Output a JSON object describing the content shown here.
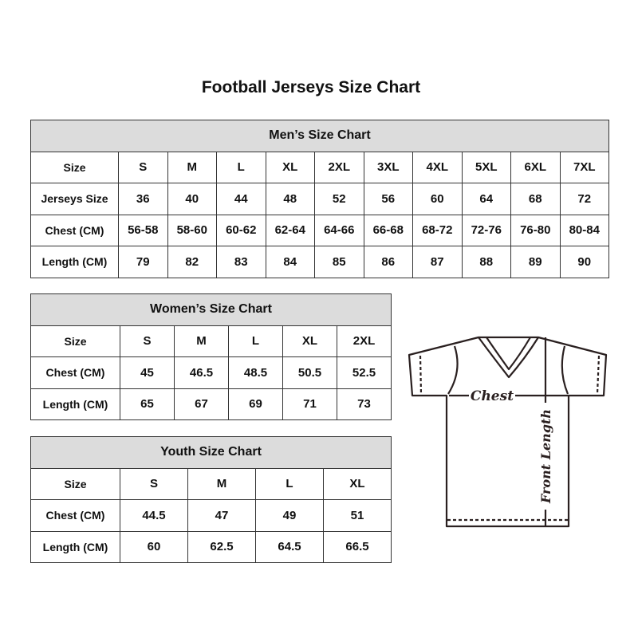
{
  "title": "Football Jerseys Size Chart",
  "men": {
    "title": "Men’s Size Chart",
    "rows": [
      [
        "Size",
        "S",
        "M",
        "L",
        "XL",
        "2XL",
        "3XL",
        "4XL",
        "5XL",
        "6XL",
        "7XL"
      ],
      [
        "Jerseys Size",
        "36",
        "40",
        "44",
        "48",
        "52",
        "56",
        "60",
        "64",
        "68",
        "72"
      ],
      [
        "Chest (CM)",
        "56-58",
        "58-60",
        "60-62",
        "62-64",
        "64-66",
        "66-68",
        "68-72",
        "72-76",
        "76-80",
        "80-84"
      ],
      [
        "Length (CM)",
        "79",
        "82",
        "83",
        "84",
        "85",
        "86",
        "87",
        "88",
        "89",
        "90"
      ]
    ]
  },
  "women": {
    "title": "Women’s Size Chart",
    "rows": [
      [
        "Size",
        "S",
        "M",
        "L",
        "XL",
        "2XL"
      ],
      [
        "Chest (CM)",
        "45",
        "46.5",
        "48.5",
        "50.5",
        "52.5"
      ],
      [
        "Length (CM)",
        "65",
        "67",
        "69",
        "71",
        "73"
      ]
    ]
  },
  "youth": {
    "title": "Youth Size Chart",
    "rows": [
      [
        "Size",
        "S",
        "M",
        "L",
        "XL"
      ],
      [
        "Chest (CM)",
        "44.5",
        "47",
        "49",
        "51"
      ],
      [
        "Length (CM)",
        "60",
        "62.5",
        "64.5",
        "66.5"
      ]
    ]
  },
  "diagram": {
    "chest_label": "Chest",
    "length_label": "Front Length"
  },
  "colors": {
    "header_bg": "#dcdcdc",
    "border": "#333333"
  }
}
